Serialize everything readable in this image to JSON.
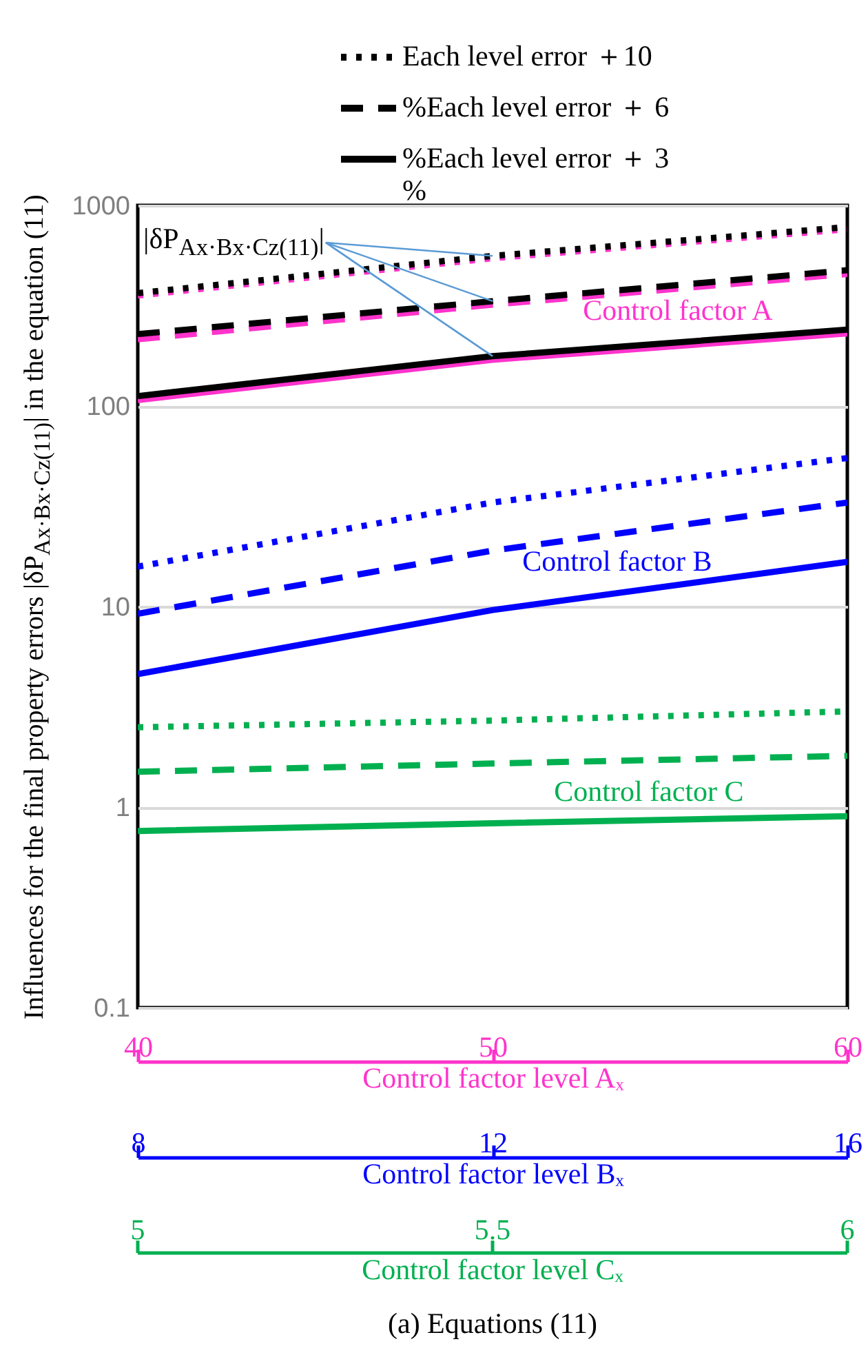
{
  "chart_data": {
    "type": "line",
    "title": "(a)   Equations (11)",
    "ylabel": "Influences for the final property errors |δP$_{Ax·Bx·Cz(11)}$| in the equation (11)",
    "xlabel": "Control factor level Aₓ",
    "xlim": [
      40,
      60
    ],
    "xticks": [
      40,
      50,
      60
    ],
    "x2label": "Control factor level Bₓ",
    "x2lim": [
      8,
      16
    ],
    "x2ticks": [
      8,
      12,
      16
    ],
    "ylim": [
      0.1,
      1000
    ],
    "yticks": [
      0.1,
      1,
      10,
      100,
      1000
    ],
    "log": "y",
    "grid": "y",
    "legend": "top right",
    "x": [
      40,
      50,
      60
    ],
    "series": [
      {
        "color": "#ff33cc",
        "line_style": "dotted",
        "values": [
          355,
          545,
          760
        ]
      },
      {
        "color": "#ff33cc",
        "line_style": "dashed",
        "values": [
          215,
          320,
          455
        ]
      },
      {
        "color": "#ff33cc",
        "line_style": "solid",
        "values": [
          107,
          170,
          230
        ]
      },
      {
        "name": "Each level error ＋10",
        "color": "#000000",
        "line_style": "dotted",
        "values": [
          365,
          560,
          780
        ]
      },
      {
        "name": "%Each level error ＋ 6",
        "color": "#000000",
        "line_style": "dashed",
        "values": [
          228,
          333,
          475
        ]
      },
      {
        "name": "%Each level error ＋ 3",
        "color": "#000000",
        "line_style": "solid",
        "values": [
          112,
          177,
          240
        ]
      },
      {
        "color": "#0000ff",
        "line_style": "dotted",
        "axis": "x2",
        "x": [
          8,
          12,
          16
        ],
        "values": [
          15.8,
          33,
          55
        ]
      },
      {
        "color": "#0000ff",
        "line_style": "dashed",
        "axis": "x2",
        "x": [
          8,
          12,
          16
        ],
        "values": [
          9.2,
          19,
          33
        ]
      },
      {
        "color": "#0000ff",
        "line_style": "solid",
        "axis": "x2",
        "x": [
          8,
          12,
          16
        ],
        "values": [
          4.6,
          9.6,
          16.7
        ]
      },
      {
        "color": "#00b050",
        "line_style": "dotted",
        "values": [
          2.5,
          2.7,
          3.0
        ]
      },
      {
        "color": "#00b050",
        "line_style": "dashed",
        "values": [
          1.5,
          1.65,
          1.8
        ]
      },
      {
        "color": "#00b050",
        "line_style": "solid",
        "values": [
          0.76,
          0.83,
          0.9
        ]
      }
    ],
    "annotations": [
      {
        "text": "|δP$_{Ax·Bx·Cz(11)}$|",
        "x": 50,
        "y": 177
      },
      "Control factor A",
      "Control factor B",
      "Control factor C",
      "%",
      "5",
      "5.5",
      "6",
      "Control factor level Cₓ"
    ]
  }
}
